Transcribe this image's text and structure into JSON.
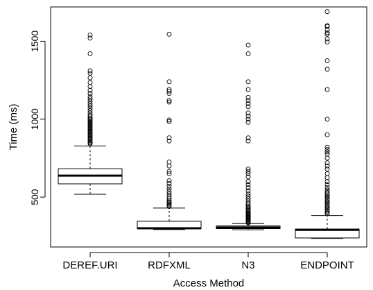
{
  "chart_data": {
    "type": "boxplot",
    "title": "",
    "xlabel": "Access Method",
    "ylabel": "Time (ms)",
    "ylim": [
      180,
      1720
    ],
    "yticks": [
      500,
      1000,
      1500
    ],
    "grid": false,
    "legend": "none",
    "categories": [
      "DEREF.URI",
      "RDFXML",
      "N3",
      "ENDPOINT"
    ],
    "boxes": [
      {
        "category": "DEREF.URI",
        "whisker_low": 518,
        "q1": 585,
        "median": 638,
        "q3": 682,
        "whisker_high": 828,
        "outliers": [
          842,
          848,
          855,
          862,
          870,
          878,
          885,
          893,
          900,
          908,
          915,
          923,
          930,
          938,
          945,
          953,
          960,
          968,
          975,
          983,
          990,
          998,
          1005,
          1015,
          1025,
          1040,
          1055,
          1070,
          1085,
          1100,
          1115,
          1130,
          1145,
          1165,
          1185,
          1210,
          1235,
          1265,
          1295,
          1310,
          1420,
          1520,
          1540
        ]
      },
      {
        "category": "RDFXML",
        "whisker_low": 292,
        "q1": 298,
        "median": 300,
        "q3": 345,
        "whisker_high": 430,
        "outliers": [
          440,
          448,
          455,
          462,
          470,
          480,
          492,
          505,
          520,
          535,
          552,
          570,
          588,
          605,
          650,
          665,
          700,
          725,
          860,
          880,
          985,
          995,
          1110,
          1120,
          1165,
          1180,
          1190,
          1240,
          1545
        ]
      },
      {
        "category": "N3",
        "whisker_low": 290,
        "q1": 298,
        "median": 305,
        "q3": 315,
        "whisker_high": 330,
        "outliers": [
          335,
          340,
          345,
          350,
          355,
          360,
          365,
          370,
          375,
          380,
          385,
          390,
          395,
          400,
          408,
          415,
          422,
          430,
          440,
          450,
          460,
          475,
          490,
          505,
          520,
          540,
          560,
          580,
          600,
          630,
          650,
          665,
          680,
          860,
          880,
          980,
          1000,
          1020,
          1040,
          1080,
          1100,
          1120,
          1140,
          1190,
          1240,
          1420,
          1475
        ]
      },
      {
        "category": "ENDPOINT",
        "whisker_low": 235,
        "q1": 238,
        "median": 290,
        "q3": 295,
        "whisker_high": 382,
        "outliers": [
          392,
          400,
          410,
          420,
          430,
          440,
          450,
          460,
          470,
          480,
          490,
          500,
          510,
          520,
          530,
          545,
          560,
          580,
          600,
          625,
          650,
          680,
          700,
          720,
          750,
          775,
          790,
          805,
          820,
          900,
          1000,
          1190,
          1320,
          1375,
          1495,
          1515,
          1545,
          1555,
          1575,
          1595,
          1600,
          1690
        ]
      }
    ]
  }
}
